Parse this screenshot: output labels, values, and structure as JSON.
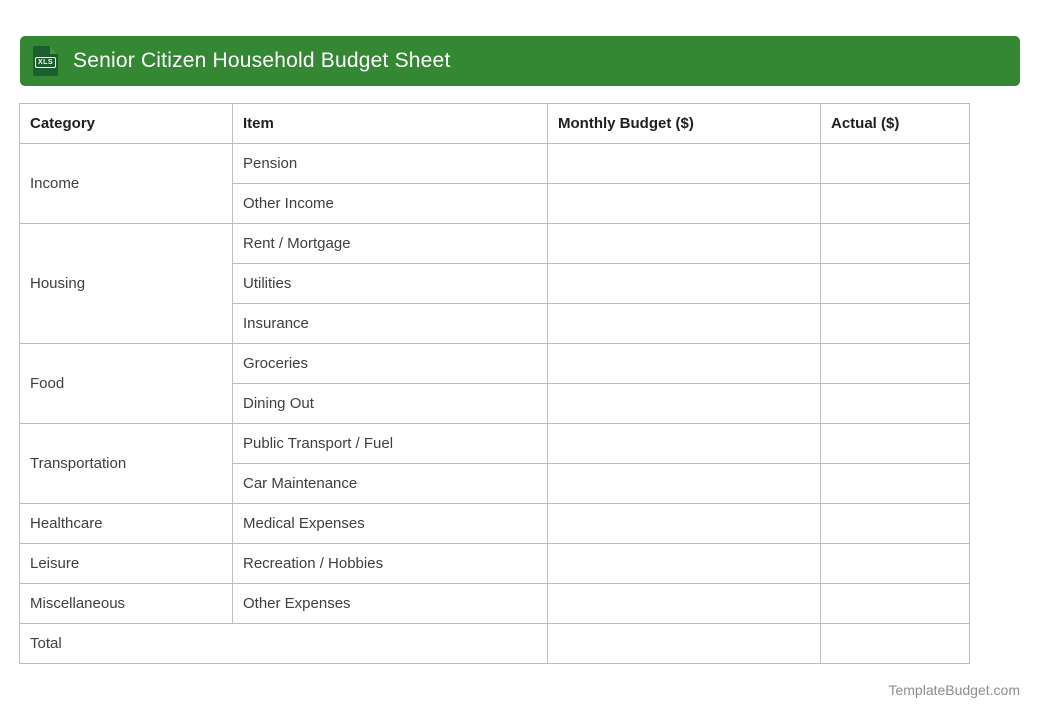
{
  "header": {
    "title": "Senior Citizen Household Budget Sheet",
    "icon_label": "XLS",
    "bar_color": "#348834",
    "icon_color": "#1d5e2f"
  },
  "table": {
    "columns": [
      "Category",
      "Item",
      "Monthly Budget ($)",
      "Actual ($)"
    ],
    "groups": [
      {
        "category": "Income",
        "items": [
          {
            "item": "Pension",
            "monthly_budget": "",
            "actual": ""
          },
          {
            "item": "Other Income",
            "monthly_budget": "",
            "actual": ""
          }
        ]
      },
      {
        "category": "Housing",
        "items": [
          {
            "item": "Rent / Mortgage",
            "monthly_budget": "",
            "actual": ""
          },
          {
            "item": "Utilities",
            "monthly_budget": "",
            "actual": ""
          },
          {
            "item": "Insurance",
            "monthly_budget": "",
            "actual": ""
          }
        ]
      },
      {
        "category": "Food",
        "items": [
          {
            "item": "Groceries",
            "monthly_budget": "",
            "actual": ""
          },
          {
            "item": "Dining Out",
            "monthly_budget": "",
            "actual": ""
          }
        ]
      },
      {
        "category": "Transportation",
        "items": [
          {
            "item": "Public Transport / Fuel",
            "monthly_budget": "",
            "actual": ""
          },
          {
            "item": "Car Maintenance",
            "monthly_budget": "",
            "actual": ""
          }
        ]
      },
      {
        "category": "Healthcare",
        "items": [
          {
            "item": "Medical Expenses",
            "monthly_budget": "",
            "actual": ""
          }
        ]
      },
      {
        "category": "Leisure",
        "items": [
          {
            "item": "Recreation / Hobbies",
            "monthly_budget": "",
            "actual": ""
          }
        ]
      },
      {
        "category": "Miscellaneous",
        "items": [
          {
            "item": "Other Expenses",
            "monthly_budget": "",
            "actual": ""
          }
        ]
      }
    ],
    "total_row": {
      "label": "Total",
      "monthly_budget": "",
      "actual": ""
    }
  },
  "footer": {
    "site": "TemplateBudget.com"
  }
}
